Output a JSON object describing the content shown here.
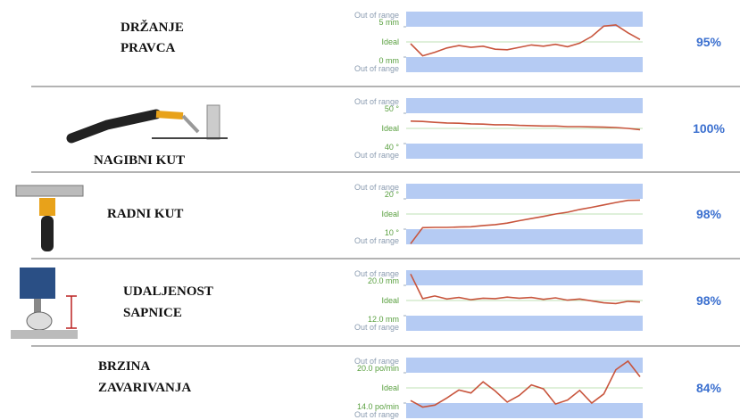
{
  "rows": [
    {
      "label": [
        "DRŽANJE",
        "PRAVCA"
      ],
      "percent": 95,
      "value_labels": [
        "95%"
      ],
      "chart": {
        "type": "line",
        "out_top": "Out of range",
        "ideal": "Ideal",
        "out_bottom": "Out of range",
        "ylim": [
          -2.5,
          7.5
        ],
        "yticks": [
          {
            "value": 0,
            "label": "0 mm"
          },
          {
            "value": 5,
            "label": "5 mm"
          }
        ],
        "color": "#c8553d",
        "values": [
          2.2,
          0.2,
          0.8,
          1.5,
          1.9,
          1.6,
          1.8,
          1.3,
          1.2,
          1.6,
          2.0,
          1.8,
          2.1,
          1.7,
          2.3,
          3.4,
          5.1,
          5.3,
          4.0,
          2.9
        ]
      }
    },
    {
      "label": [
        "NAGIBNI KUT"
      ],
      "percent": 100,
      "value_labels": [
        "100%"
      ],
      "chart": {
        "type": "line",
        "out_top": "Out of range",
        "ideal": "Ideal",
        "out_bottom": "Out of range",
        "ylim": [
          35,
          55
        ],
        "yticks": [
          {
            "value": 40,
            "label": "40 °"
          },
          {
            "value": 50,
            "label": "50 °"
          }
        ],
        "color": "#c8553d",
        "values": [
          47.4,
          47.3,
          47.0,
          46.8,
          46.7,
          46.5,
          46.4,
          46.2,
          46.2,
          46.0,
          45.9,
          45.8,
          45.8,
          45.6,
          45.6,
          45.5,
          45.4,
          45.3,
          45.0,
          44.6
        ]
      }
    },
    {
      "label": [
        "RADNI KUT"
      ],
      "percent": 98,
      "value_labels": [
        "98%"
      ],
      "chart": {
        "type": "line",
        "out_top": "Out of range",
        "ideal": "Ideal",
        "out_bottom": "Out of range",
        "ylim": [
          5,
          25
        ],
        "yticks": [
          {
            "value": 10,
            "label": "10 °"
          },
          {
            "value": 20,
            "label": "20 °"
          }
        ],
        "color": "#c8553d",
        "values": [
          5.2,
          10.5,
          10.6,
          10.6,
          10.7,
          10.8,
          11.2,
          11.5,
          12.0,
          12.8,
          13.5,
          14.2,
          15.0,
          15.6,
          16.5,
          17.2,
          18.0,
          18.8,
          19.5,
          19.6
        ]
      }
    },
    {
      "label": [
        "UDALJENOST",
        "SAPNICE"
      ],
      "percent": 98,
      "value_labels": [
        "98%"
      ],
      "chart": {
        "type": "line",
        "out_top": "Out of range",
        "ideal": "Ideal",
        "out_bottom": "Out of range",
        "ylim": [
          8,
          24
        ],
        "yticks": [
          {
            "value": 12,
            "label": "12.0 mm"
          },
          {
            "value": 20,
            "label": "20.0 mm"
          }
        ],
        "color": "#c8553d",
        "values": [
          23.0,
          16.5,
          17.2,
          16.4,
          16.8,
          16.2,
          16.6,
          16.5,
          16.9,
          16.6,
          16.8,
          16.3,
          16.7,
          16.1,
          16.4,
          15.9,
          15.4,
          15.2,
          15.8,
          15.6
        ]
      }
    },
    {
      "label": [
        "BRZINA",
        "ZAVARIVANJA"
      ],
      "percent": 84,
      "value_labels": [
        "84%"
      ],
      "chart": {
        "type": "line",
        "out_top": "Out of range",
        "ideal": "Ideal",
        "out_bottom": "Out of range",
        "ylim": [
          11,
          23
        ],
        "yticks": [
          {
            "value": 14,
            "label": "14.0 po/min"
          },
          {
            "value": 20,
            "label": "20.0 po/min"
          }
        ],
        "color": "#c8553d",
        "values": [
          14.5,
          13.2,
          13.6,
          15.0,
          16.6,
          16.0,
          18.2,
          16.4,
          14.2,
          15.5,
          17.6,
          16.8,
          13.8,
          14.6,
          16.5,
          14.0,
          15.8,
          20.6,
          22.3,
          19.2
        ]
      }
    }
  ]
}
